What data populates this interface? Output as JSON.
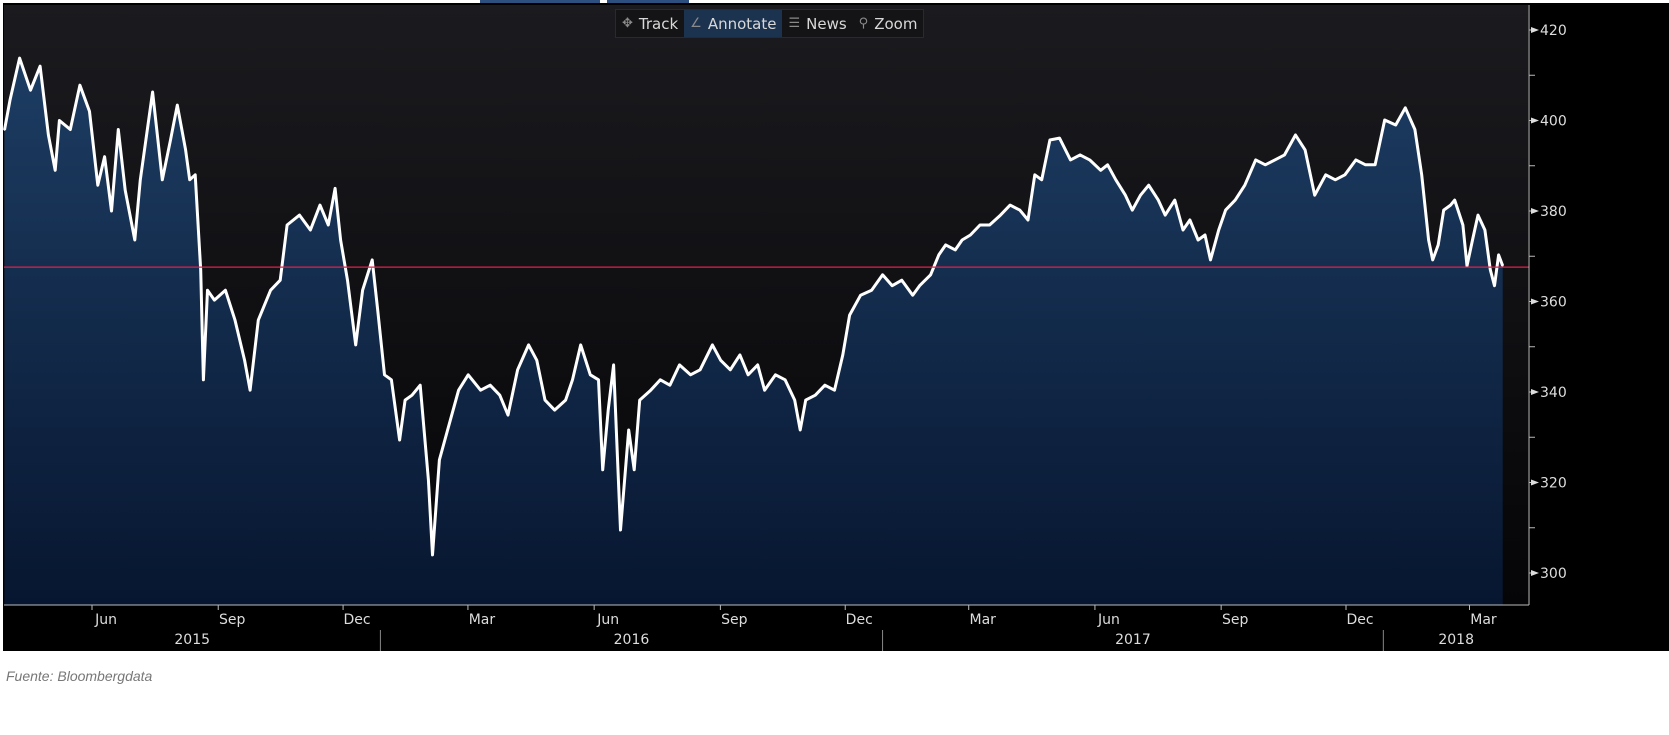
{
  "toolbar": {
    "items": [
      {
        "label": "Track",
        "icon": "crosshair-icon"
      },
      {
        "label": "Annotate",
        "icon": "pencil-icon",
        "active": true
      },
      {
        "label": "News",
        "icon": "news-icon"
      },
      {
        "label": "Zoom",
        "icon": "magnifier-icon"
      }
    ]
  },
  "source": "Fuente: Bloombergdata",
  "colors": {
    "line": "#ffffff",
    "fill_top": "#1d3d63",
    "fill_bottom": "#071630",
    "reference_line": "#e0204a",
    "background": "#000000"
  },
  "chart_data": {
    "type": "area",
    "title": "",
    "xlabel": "",
    "ylabel": "",
    "ylim": [
      295,
      422
    ],
    "yticks": [
      300,
      320,
      340,
      360,
      380,
      400,
      420
    ],
    "y_axis_position": "right",
    "grid": false,
    "reference_line": 367.6,
    "month_ticks": [
      {
        "label": "Jun",
        "date": "2015-06-15"
      },
      {
        "label": "Sep",
        "date": "2015-09-15"
      },
      {
        "label": "Dec",
        "date": "2015-12-15"
      },
      {
        "label": "Mar",
        "date": "2016-03-15"
      },
      {
        "label": "Jun",
        "date": "2016-06-15"
      },
      {
        "label": "Sep",
        "date": "2016-09-15"
      },
      {
        "label": "Dec",
        "date": "2016-12-15"
      },
      {
        "label": "Mar",
        "date": "2017-03-15"
      },
      {
        "label": "Jun",
        "date": "2017-06-15"
      },
      {
        "label": "Sep",
        "date": "2017-09-15"
      },
      {
        "label": "Dec",
        "date": "2017-12-15"
      },
      {
        "label": "Mar",
        "date": "2018-03-15"
      }
    ],
    "year_labels": [
      "2015",
      "2016",
      "2017",
      "2018"
    ],
    "x": [
      "2015-04-02",
      "2015-04-06",
      "2015-04-13",
      "2015-04-21",
      "2015-04-28",
      "2015-05-04",
      "2015-05-09",
      "2015-05-12",
      "2015-05-20",
      "2015-05-27",
      "2015-06-03",
      "2015-06-09",
      "2015-06-14",
      "2015-06-19",
      "2015-06-24",
      "2015-06-29",
      "2015-07-06",
      "2015-07-10",
      "2015-07-19",
      "2015-07-26",
      "2015-08-01",
      "2015-08-06",
      "2015-08-12",
      "2015-08-15",
      "2015-08-19",
      "2015-08-23",
      "2015-08-25",
      "2015-08-28",
      "2015-09-02",
      "2015-09-10",
      "2015-09-17",
      "2015-09-24",
      "2015-09-28",
      "2015-10-04",
      "2015-10-13",
      "2015-10-20",
      "2015-10-25",
      "2015-11-03",
      "2015-11-11",
      "2015-11-18",
      "2015-11-24",
      "2015-11-29",
      "2015-12-03",
      "2015-12-08",
      "2015-12-14",
      "2015-12-19",
      "2015-12-26",
      "2015-12-30",
      "2016-01-04",
      "2016-01-09",
      "2016-01-15",
      "2016-01-19",
      "2016-01-24",
      "2016-01-30",
      "2016-02-05",
      "2016-02-08",
      "2016-02-13",
      "2016-02-19",
      "2016-02-27",
      "2016-03-05",
      "2016-03-14",
      "2016-03-21",
      "2016-03-28",
      "2016-04-03",
      "2016-04-10",
      "2016-04-18",
      "2016-04-24",
      "2016-04-30",
      "2016-05-07",
      "2016-05-15",
      "2016-05-20",
      "2016-05-26",
      "2016-06-02",
      "2016-06-08",
      "2016-06-11",
      "2016-06-15",
      "2016-06-19",
      "2016-06-24",
      "2016-06-30",
      "2016-07-04",
      "2016-07-08",
      "2016-07-16",
      "2016-07-23",
      "2016-07-30",
      "2016-08-06",
      "2016-08-14",
      "2016-08-21",
      "2016-08-30",
      "2016-09-05",
      "2016-09-12",
      "2016-09-19",
      "2016-09-25",
      "2016-10-02",
      "2016-10-07",
      "2016-10-15",
      "2016-10-22",
      "2016-10-29",
      "2016-11-02",
      "2016-11-06",
      "2016-11-13",
      "2016-11-20",
      "2016-11-27",
      "2016-12-03",
      "2016-12-08",
      "2016-12-16",
      "2016-12-24",
      "2017-01-01",
      "2017-01-08",
      "2017-01-15",
      "2017-01-23",
      "2017-01-28",
      "2017-02-05",
      "2017-02-11",
      "2017-02-16",
      "2017-02-23",
      "2017-02-28",
      "2017-03-06",
      "2017-03-13",
      "2017-03-20",
      "2017-03-28",
      "2017-04-04",
      "2017-04-11",
      "2017-04-17",
      "2017-04-22",
      "2017-04-27",
      "2017-05-03",
      "2017-05-10",
      "2017-05-18",
      "2017-05-25",
      "2017-06-01",
      "2017-06-09",
      "2017-06-14",
      "2017-06-20",
      "2017-06-27",
      "2017-07-02",
      "2017-07-08",
      "2017-07-14",
      "2017-07-21",
      "2017-07-26",
      "2017-08-02",
      "2017-08-08",
      "2017-08-13",
      "2017-08-19",
      "2017-08-24",
      "2017-08-28",
      "2017-09-03",
      "2017-09-08",
      "2017-09-15",
      "2017-09-22",
      "2017-09-30",
      "2017-10-07",
      "2017-10-14",
      "2017-10-21",
      "2017-10-29",
      "2017-11-05",
      "2017-11-12",
      "2017-11-20",
      "2017-11-27",
      "2017-12-04",
      "2017-12-12",
      "2017-12-19",
      "2017-12-26",
      "2018-01-02",
      "2018-01-10",
      "2018-01-17",
      "2018-01-24",
      "2018-01-29",
      "2018-02-03",
      "2018-02-06",
      "2018-02-10",
      "2018-02-14",
      "2018-02-19",
      "2018-02-22",
      "2018-02-28",
      "2018-03-03",
      "2018-03-07",
      "2018-03-11",
      "2018-03-16",
      "2018-03-20",
      "2018-03-23",
      "2018-03-26",
      "2018-03-29"
    ],
    "series": [
      {
        "values": [
          397.9,
          404.5,
          413.8,
          406.7,
          412,
          396.8,
          389,
          400,
          398,
          407.8,
          402,
          385.7,
          392,
          380,
          398,
          384.6,
          373.6,
          386.9,
          406.3,
          386.9,
          395.7,
          403.4,
          393.5,
          386.9,
          388,
          367,
          342.7,
          362.5,
          360.3,
          362.5,
          355.9,
          347,
          340.4,
          355.9,
          362.5,
          364.7,
          376.9,
          379.1,
          375.8,
          381.3,
          376.9,
          385,
          373.6,
          364.7,
          350.4,
          362.5,
          369.2,
          358.1,
          343.8,
          342.7,
          329.4,
          338.2,
          339.3,
          341.5,
          320.6,
          304,
          325,
          331.6,
          340.4,
          343.8,
          340.4,
          341.5,
          339.3,
          334.9,
          344.9,
          350.4,
          347,
          338.2,
          336,
          338.2,
          342.7,
          350.4,
          343.8,
          342.7,
          322.8,
          336,
          346,
          309.5,
          331.6,
          322.8,
          338.2,
          340.4,
          342.7,
          341.5,
          346,
          343.8,
          344.9,
          350.4,
          347,
          344.9,
          348.2,
          343.8,
          346,
          340.4,
          343.8,
          342.7,
          338.2,
          331.6,
          338.2,
          339.3,
          341.5,
          340.4,
          348.2,
          357,
          361.4,
          362.5,
          365.9,
          363.5,
          364.7,
          361.4,
          363.5,
          365.9,
          370.3,
          372.5,
          371.4,
          373.6,
          374.7,
          376.9,
          376.9,
          379.1,
          381.3,
          380.2,
          378,
          388,
          386.9,
          395.7,
          396.1,
          391.3,
          392.4,
          391.3,
          389,
          390.2,
          386.9,
          383.5,
          380.2,
          383.5,
          385.7,
          382.4,
          379.1,
          382.4,
          375.8,
          378,
          373.6,
          374.7,
          369.2,
          375.8,
          380.2,
          382.4,
          385.7,
          391.3,
          390.2,
          391.3,
          392.4,
          396.8,
          393.5,
          383.5,
          388,
          386.9,
          388,
          391.3,
          390.2,
          390.2,
          400.1,
          399,
          402.8,
          398,
          388,
          373.6,
          369.2,
          372.5,
          380.2,
          381.3,
          382.4,
          376.9,
          367.9,
          373.6,
          379.1,
          375.8,
          367,
          363.5,
          370.3,
          367.9
        ]
      }
    ]
  }
}
